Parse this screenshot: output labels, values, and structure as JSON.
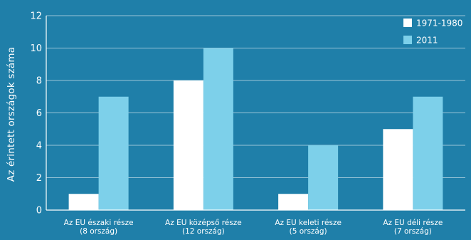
{
  "chart_data": {
    "type": "bar",
    "title": "",
    "xlabel": "",
    "ylabel": "Az érintett országok száma",
    "ylim": [
      0,
      12
    ],
    "yticks": [
      0,
      2,
      4,
      6,
      8,
      10,
      12
    ],
    "grid": true,
    "legend_position": "top-right",
    "categories": [
      [
        "Az EU északi része",
        "(8 ország)"
      ],
      [
        "Az EU középső része",
        "(12 ország)"
      ],
      [
        "Az EU keleti része",
        "(5 ország)"
      ],
      [
        "Az EU déli része",
        "(7 ország)"
      ]
    ],
    "series": [
      {
        "name": "1971-1980",
        "color": "#ffffff",
        "values": [
          1,
          8,
          1,
          5
        ]
      },
      {
        "name": "2011",
        "color": "#7dd0ea",
        "values": [
          7,
          10,
          4,
          7
        ]
      }
    ]
  },
  "colors": {
    "background": "#1f7fa9",
    "text": "#ffffff"
  }
}
